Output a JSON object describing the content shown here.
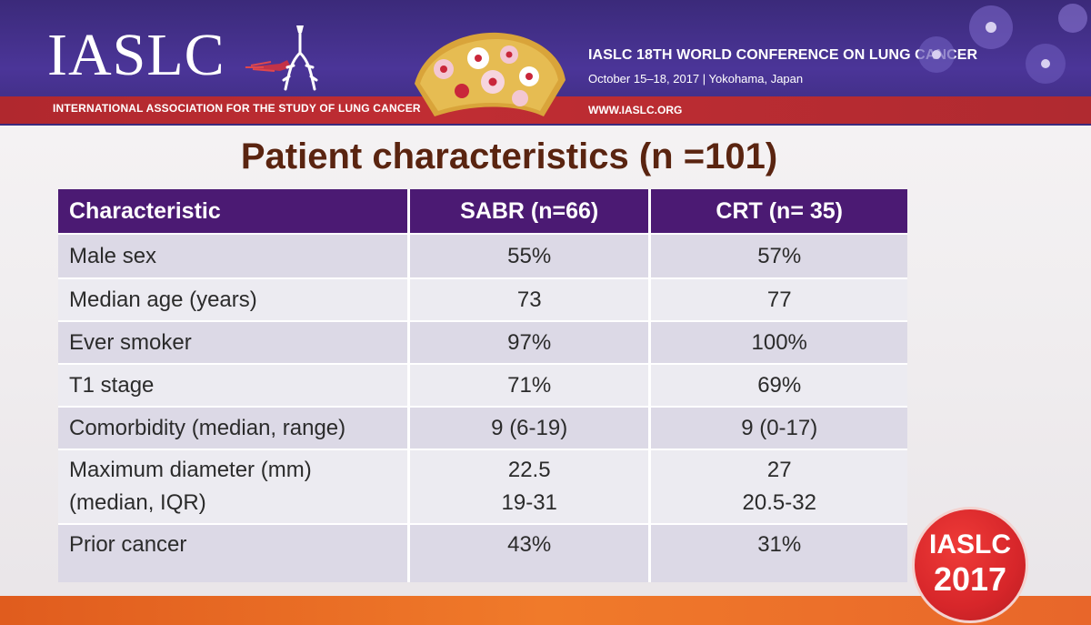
{
  "header": {
    "logo_text": "IASLC",
    "org_name": "INTERNATIONAL ASSOCIATION FOR THE STUDY OF LUNG CANCER",
    "conference_title": "IASLC 18TH WORLD CONFERENCE ON LUNG CANCER",
    "conference_date": "October 15–18, 2017 | Yokohama, Japan",
    "website": "WWW.IASLC.ORG"
  },
  "slide": {
    "title": "Patient characteristics (n =101)"
  },
  "table": {
    "headers": [
      "Characteristic",
      "SABR (n=66)",
      "CRT (n= 35)"
    ],
    "rows": [
      {
        "label": [
          "Male sex"
        ],
        "sabr": [
          "55%"
        ],
        "crt": [
          "57%"
        ]
      },
      {
        "label": [
          "Median age (years)"
        ],
        "sabr": [
          "73"
        ],
        "crt": [
          "77"
        ]
      },
      {
        "label": [
          "Ever smoker"
        ],
        "sabr": [
          "97%"
        ],
        "crt": [
          "100%"
        ]
      },
      {
        "label": [
          "T1 stage"
        ],
        "sabr": [
          "71%"
        ],
        "crt": [
          "69%"
        ]
      },
      {
        "label": [
          "Comorbidity (median, range)"
        ],
        "sabr": [
          "9 (6-19)"
        ],
        "crt": [
          "9 (0-17)"
        ]
      },
      {
        "label": [
          "Maximum diameter (mm)",
          "(median, IQR)"
        ],
        "sabr": [
          "22.5",
          "19-31"
        ],
        "crt": [
          "27",
          "20.5-32"
        ]
      },
      {
        "label": [
          "Prior cancer"
        ],
        "sabr": [
          "43%"
        ],
        "crt": [
          "31%"
        ]
      }
    ]
  },
  "badge": {
    "line1": "IASLC",
    "line2": "2017"
  },
  "colors": {
    "banner": "#4b3598",
    "banner_stripe": "#b0282e",
    "table_header": "#4b1a73",
    "row_dark": "#dcd9e6",
    "row_light": "#ecebf1",
    "title_text": "#5a2410",
    "badge": "#d7262a",
    "bottom_bar": "#f07a2a"
  }
}
